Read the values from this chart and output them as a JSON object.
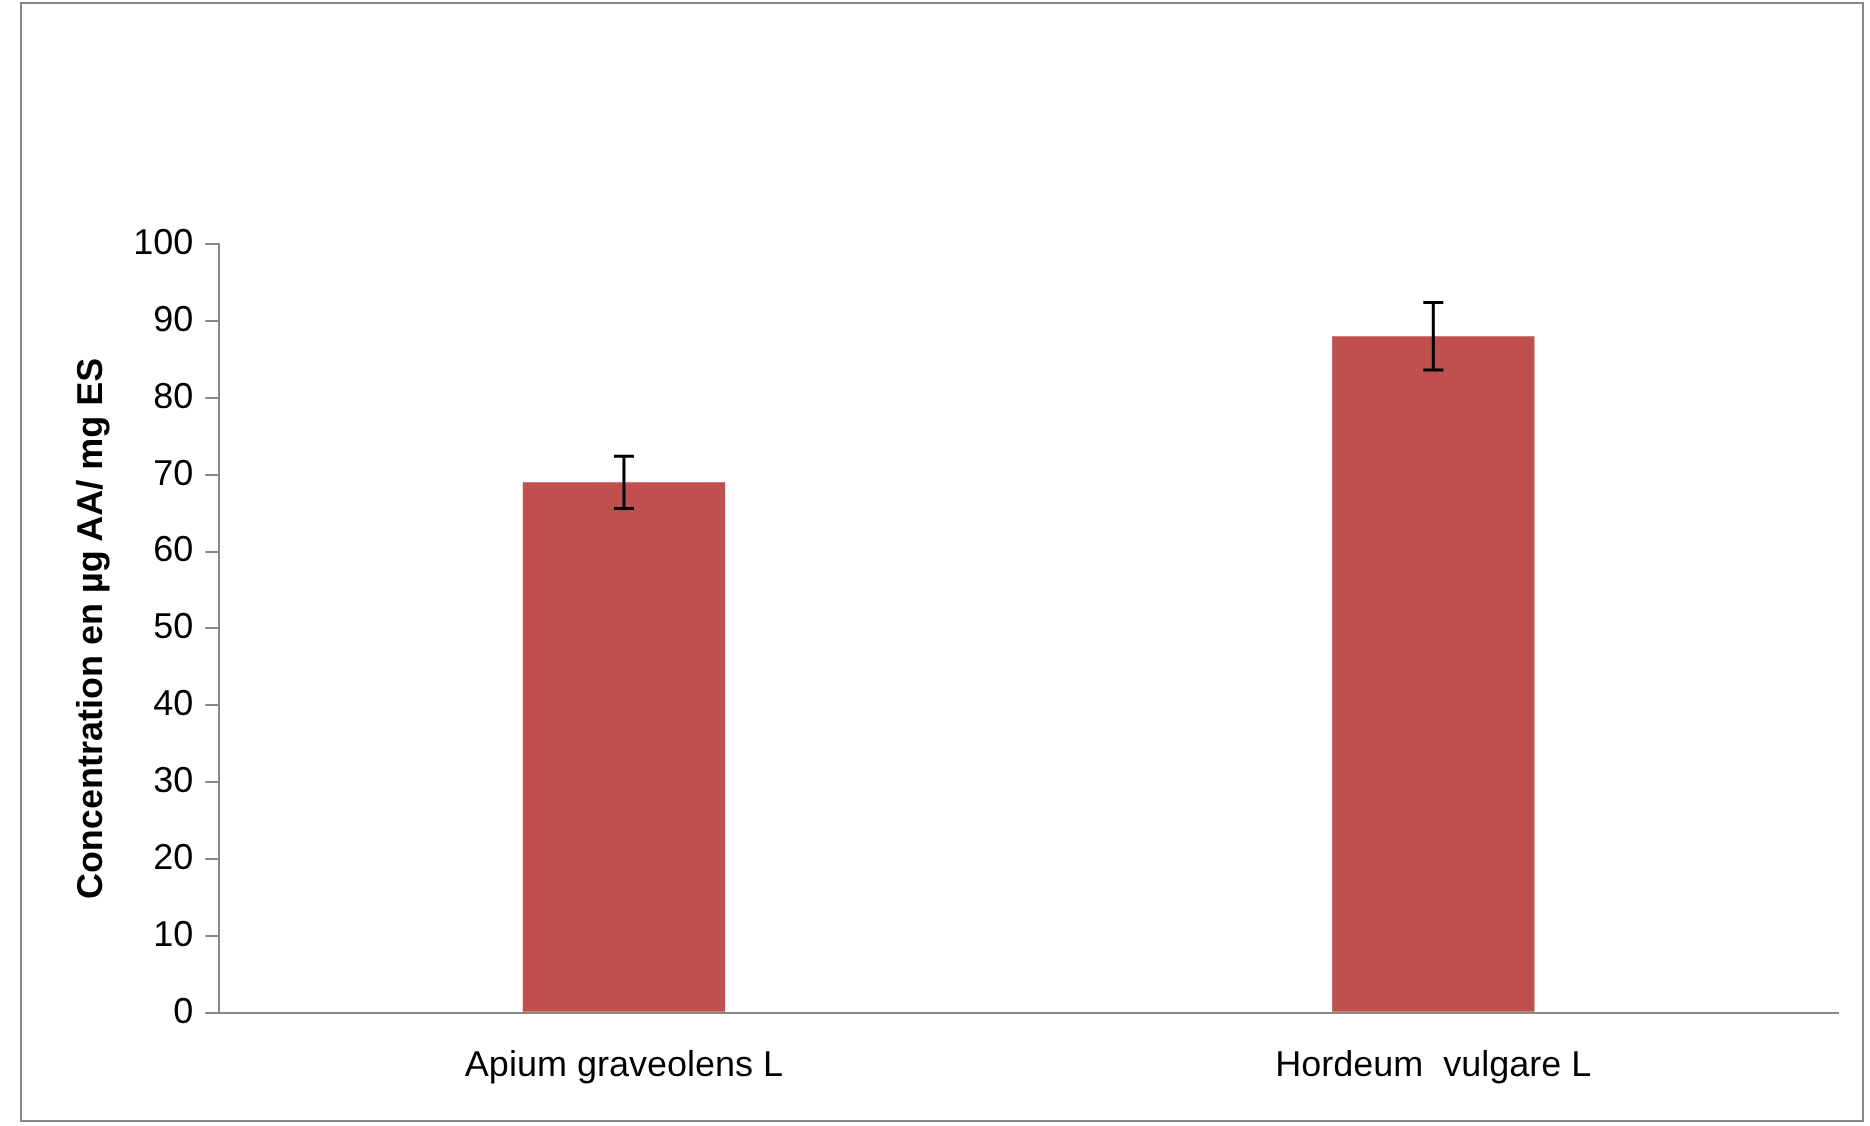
{
  "chart_data": {
    "type": "bar",
    "ylabel": "Concentration en µg AA/ mg ES",
    "categories": [
      "Apium graveolens L",
      "Hordeum  vulgare L"
    ],
    "values": [
      69,
      88
    ],
    "errors": [
      3.4,
      4.4
    ],
    "color": "#c0504d",
    "ylim": [
      0,
      100
    ],
    "yticks": [
      0,
      10,
      20,
      30,
      40,
      50,
      60,
      70,
      80,
      90,
      100
    ],
    "grid": false,
    "legend": false
  }
}
